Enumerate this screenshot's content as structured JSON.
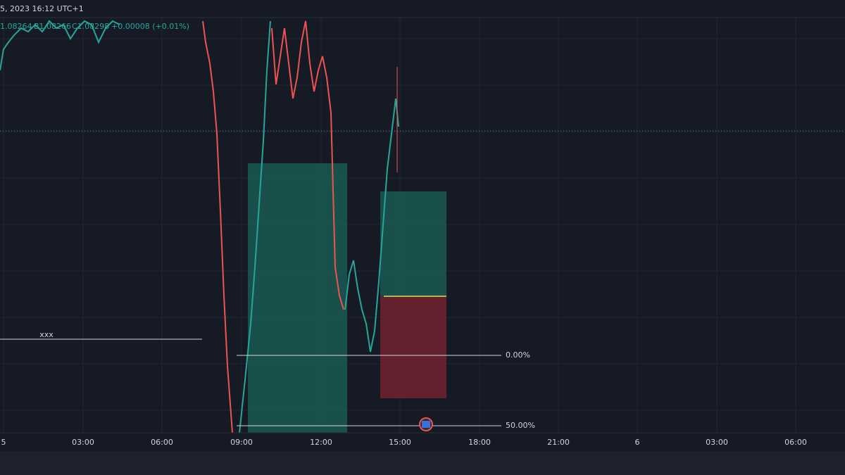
{
  "header": {
    "datetime": "5, 2023 16:12 UTC+1"
  },
  "legend": {
    "open": "1.08264",
    "bid": "B1.08266",
    "close": "C1.08298",
    "change": "+0.00008 (+0.01%)"
  },
  "annotation": {
    "line_label": "xxx"
  },
  "fib_levels": [
    {
      "label": "0.00%"
    },
    {
      "label": "50.00%"
    }
  ],
  "time_axis": {
    "labels": [
      "5",
      "03:00",
      "06:00",
      "09:00",
      "12:00",
      "15:00",
      "18:00",
      "21:00",
      "6",
      "03:00",
      "06:00"
    ]
  }
}
